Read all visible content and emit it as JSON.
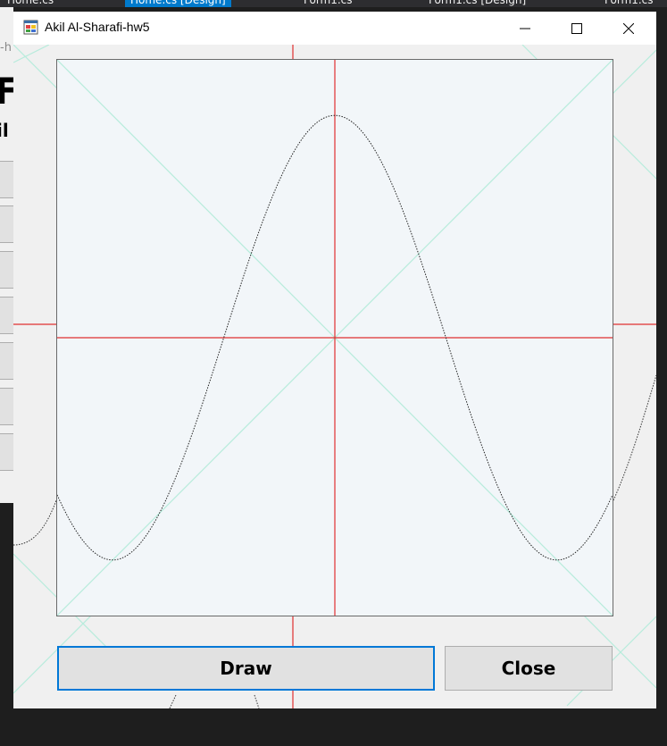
{
  "ide": {
    "tabs": [
      {
        "label": "Home.cs",
        "active": false
      },
      {
        "label": "Home.cs [Design]",
        "active": true
      },
      {
        "label": "Form1.cs",
        "active": false
      },
      {
        "label": "Form1.cs [Design]",
        "active": false
      },
      {
        "label": "Form1.cs",
        "active": false
      }
    ],
    "panel_big_text": "Fo",
    "panel_mid_text": "il",
    "panel_hint_text": "-h"
  },
  "window": {
    "title": "Akil Al-Sharafi-hw5",
    "icon": "winforms-app-icon",
    "minimize_icon": "minimize-icon",
    "maximize_icon": "maximize-icon",
    "close_icon": "close-icon"
  },
  "buttons": {
    "draw_label": "Draw",
    "close_label": "Close"
  },
  "colors": {
    "axis": "#e03030",
    "diagonal": "#b7ecdc",
    "curve": "#222222",
    "focus_border": "#0078d7"
  },
  "chart_data": {
    "type": "line",
    "function": "sine",
    "x_range": [
      -3.1416,
      3.1416
    ],
    "y_range": [
      -1.4,
      1.4
    ],
    "amplitude": 1.12,
    "frequency": 1.25,
    "phase": 1.5708,
    "line_style": "dotted",
    "axes": "cross through origin",
    "diagonals": true,
    "title": "",
    "xlabel": "",
    "ylabel": ""
  }
}
